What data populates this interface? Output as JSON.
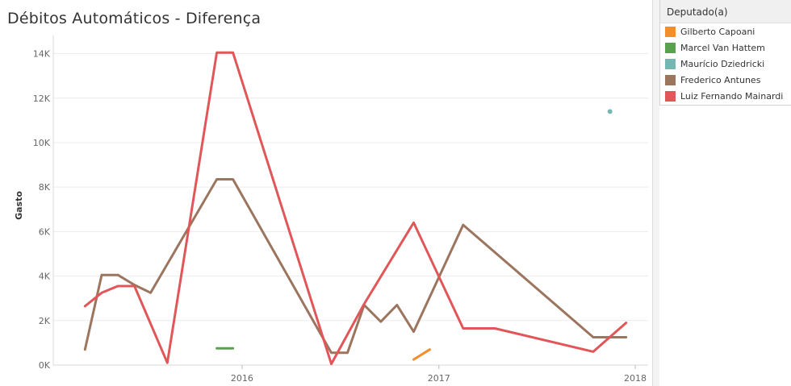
{
  "chart_data": {
    "type": "line",
    "title": "Débitos Automáticos - Diferença",
    "ylabel": "Gasto",
    "xlabel": "",
    "ylim": [
      0,
      14600
    ],
    "yticks": [
      {
        "value": 0,
        "label": "0K"
      },
      {
        "value": 2000,
        "label": "2K"
      },
      {
        "value": 4000,
        "label": "4K"
      },
      {
        "value": 6000,
        "label": "6K"
      },
      {
        "value": 8000,
        "label": "8K"
      },
      {
        "value": 10000,
        "label": "10K"
      },
      {
        "value": 12000,
        "label": "12K"
      },
      {
        "value": 14000,
        "label": "14K"
      }
    ],
    "xlim": [
      "2015-01-15",
      "2018-01-25"
    ],
    "xticks": [
      {
        "value": "2016-01-01",
        "label": "2016"
      },
      {
        "value": "2017-01-01",
        "label": "2017"
      },
      {
        "value": "2018-01-01",
        "label": "2018"
      }
    ],
    "grid": true,
    "legend_title": "Deputado(a)",
    "legend_position": "top-right",
    "series": [
      {
        "name": "Gilberto Capoani",
        "color": "#f28e2b",
        "points": [
          [
            "2016-11-15",
            250
          ],
          [
            "2016-12-15",
            700
          ]
        ]
      },
      {
        "name": "Marcel Van Hattem",
        "color": "#59a14f",
        "points": [
          [
            "2015-11-15",
            750
          ],
          [
            "2015-12-15",
            750
          ]
        ]
      },
      {
        "name": "Maurício Dziedricki",
        "color": "#76b7b2",
        "points": [
          [
            "2017-11-15",
            11400
          ]
        ]
      },
      {
        "name": "Frederico Antunes",
        "color": "#9c755f",
        "points": [
          [
            "2015-03-15",
            700
          ],
          [
            "2015-04-15",
            4050
          ],
          [
            "2015-05-15",
            4050
          ],
          [
            "2015-06-15",
            3600
          ],
          [
            "2015-07-15",
            3250
          ],
          [
            "2015-11-15",
            8350
          ],
          [
            "2015-12-15",
            8350
          ],
          [
            "2016-06-15",
            550
          ],
          [
            "2016-07-15",
            550
          ],
          [
            "2016-08-15",
            2700
          ],
          [
            "2016-09-15",
            1950
          ],
          [
            "2016-10-15",
            2700
          ],
          [
            "2016-11-15",
            1500
          ],
          [
            "2017-02-15",
            6300
          ],
          [
            "2017-10-15",
            1250
          ],
          [
            "2017-11-15",
            1250
          ],
          [
            "2017-12-15",
            1250
          ]
        ]
      },
      {
        "name": "Luiz Fernando Mainardi",
        "color": "#e15759",
        "points": [
          [
            "2015-03-15",
            2650
          ],
          [
            "2015-04-15",
            3250
          ],
          [
            "2015-05-15",
            3550
          ],
          [
            "2015-06-15",
            3550
          ],
          [
            "2015-08-15",
            100
          ],
          [
            "2015-11-15",
            14050
          ],
          [
            "2015-12-15",
            14050
          ],
          [
            "2016-06-15",
            50
          ],
          [
            "2016-08-15",
            2750
          ],
          [
            "2016-11-15",
            6400
          ],
          [
            "2017-02-15",
            1650
          ],
          [
            "2017-04-15",
            1650
          ],
          [
            "2017-10-15",
            600
          ],
          [
            "2017-12-15",
            1900
          ]
        ]
      }
    ]
  }
}
